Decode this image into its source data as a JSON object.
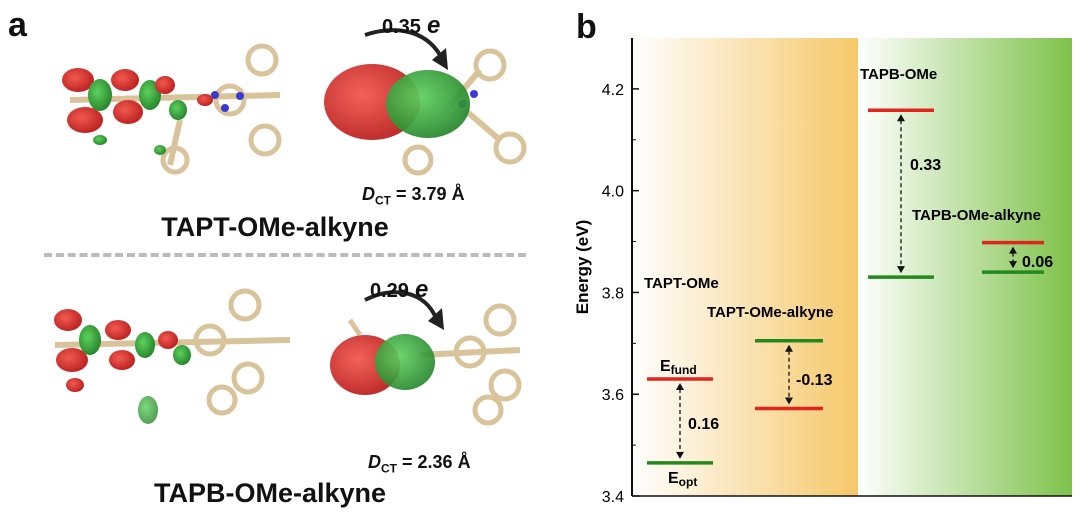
{
  "panel_a": {
    "letter": "a",
    "top": {
      "charge_value": "0.35",
      "charge_unit": "e",
      "dct_symbol": "D",
      "dct_sub": "CT",
      "dct_value": "= 3.79 Å",
      "name": "TAPT-OMe-alkyne"
    },
    "bottom": {
      "charge_value": "0.29",
      "charge_unit": "e",
      "dct_symbol": "D",
      "dct_sub": "CT",
      "dct_value": "= 2.36 Å",
      "name": "TAPB-OMe-alkyne"
    },
    "colors": {
      "positive": "#d42a2a",
      "negative": "#2e9a34",
      "carbon": "#e3cfa8",
      "hydrogen": "#f4f0e8",
      "nitrogen": "#3a3ad0"
    }
  },
  "chart_data": {
    "type": "energy-level diagram",
    "panel_letter": "b",
    "ylabel": "Energy (eV)",
    "ylim": [
      3.4,
      4.3
    ],
    "yticks": [
      "3.4",
      "3.6",
      "3.8",
      "4.0",
      "4.2"
    ],
    "level_colors": {
      "fund": "#e0241e",
      "opt": "#23891f"
    },
    "background": {
      "left": "#ffffff",
      "mid": "#f5c86a",
      "right": "#7ec24a"
    },
    "systems": [
      {
        "name": "TAPT-OMe",
        "E_fund": 3.63,
        "E_opt": 3.465,
        "gap_label": "0.16"
      },
      {
        "name": "TAPT-OMe-alkyne",
        "E_fund": 3.572,
        "E_opt": 3.705,
        "gap_label": "-0.13"
      },
      {
        "name": "TAPB-OMe",
        "E_fund": 4.158,
        "E_opt": 3.83,
        "gap_label": "0.33"
      },
      {
        "name": "TAPB-OMe-alkyne",
        "E_fund": 3.898,
        "E_opt": 3.84,
        "gap_label": "0.06"
      }
    ],
    "level_labels": {
      "fund_main": "E",
      "fund_sub": "fund",
      "opt_main": "E",
      "opt_sub": "opt"
    }
  }
}
